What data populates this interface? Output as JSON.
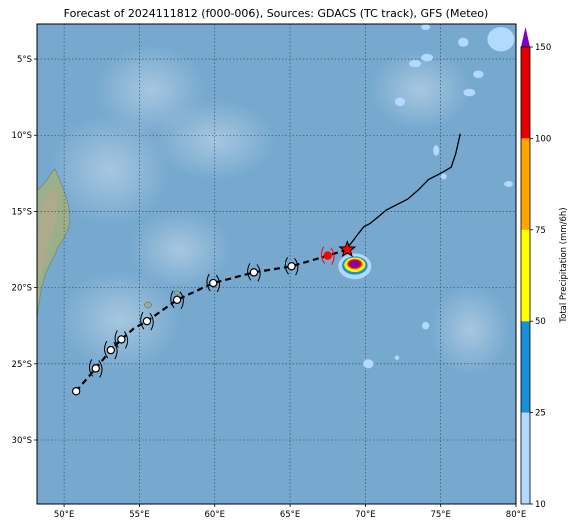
{
  "title": "Forecast of 2024111812 (f000-006), Sources: GDACS (TC track), GFS (Meteo)",
  "map": {
    "lon_range": [
      48.2,
      80
    ],
    "lat_range": [
      -34.2,
      -2.7
    ],
    "x_ticks": [
      {
        "value": 50,
        "label": "50°E"
      },
      {
        "value": 55,
        "label": "55°E"
      },
      {
        "value": 60,
        "label": "60°E"
      },
      {
        "value": 65,
        "label": "65°E"
      },
      {
        "value": 70,
        "label": "70°E"
      },
      {
        "value": 75,
        "label": "75°E"
      },
      {
        "value": 80,
        "label": "80°E"
      }
    ],
    "y_ticks": [
      {
        "value": -5,
        "label": "5°S"
      },
      {
        "value": -10,
        "label": "10°S"
      },
      {
        "value": -15,
        "label": "15°S"
      },
      {
        "value": -20,
        "label": "20°S"
      },
      {
        "value": -25,
        "label": "25°S"
      },
      {
        "value": -30,
        "label": "30°S"
      }
    ],
    "gridlines": true,
    "ocean_color": "#77a9cf",
    "land_color": "#9bb08a",
    "past_track": [
      [
        76.3,
        -9.9
      ],
      [
        76.0,
        -11.2
      ],
      [
        75.7,
        -12.1
      ],
      [
        75.0,
        -12.5
      ],
      [
        74.2,
        -12.9
      ],
      [
        73.5,
        -13.6
      ],
      [
        72.8,
        -14.2
      ],
      [
        72.0,
        -14.6
      ],
      [
        71.4,
        -14.9
      ],
      [
        70.8,
        -15.4
      ],
      [
        70.3,
        -15.8
      ],
      [
        69.9,
        -16.0
      ],
      [
        69.5,
        -16.5
      ],
      [
        69.2,
        -16.9
      ],
      [
        68.8,
        -17.4
      ]
    ],
    "current_position": {
      "lon": 68.8,
      "lat": -17.5,
      "color": "#ff0000"
    },
    "forecast_track": [
      [
        68.8,
        -17.5
      ],
      [
        67.5,
        -17.9
      ],
      [
        65.1,
        -18.6
      ],
      [
        62.6,
        -19.0
      ],
      [
        59.9,
        -19.7
      ],
      [
        57.5,
        -20.8
      ],
      [
        55.5,
        -22.2
      ],
      [
        54.6,
        -22.7
      ],
      [
        53.8,
        -23.4
      ],
      [
        53.1,
        -24.1
      ],
      [
        52.1,
        -25.3
      ],
      [
        50.8,
        -26.8
      ]
    ],
    "forecast_points": [
      {
        "lon": 67.5,
        "lat": -17.9,
        "color": "#ff0000"
      },
      {
        "lon": 65.1,
        "lat": -18.6,
        "color": "#ffffff"
      },
      {
        "lon": 62.6,
        "lat": -19.0,
        "color": "#ffffff"
      },
      {
        "lon": 59.9,
        "lat": -19.7,
        "color": "#ffffff"
      },
      {
        "lon": 57.5,
        "lat": -20.8,
        "color": "#ffffff"
      },
      {
        "lon": 55.5,
        "lat": -22.2,
        "color": "#ffffff"
      },
      {
        "lon": 53.8,
        "lat": -23.4,
        "color": "#ffffff"
      },
      {
        "lon": 53.1,
        "lat": -24.1,
        "color": "#ffffff"
      },
      {
        "lon": 52.1,
        "lat": -25.3,
        "color": "#ffffff"
      },
      {
        "lon": 50.8,
        "lat": -26.8,
        "color": "#ffffff"
      }
    ],
    "precip_blobs": [
      {
        "lon": 69.3,
        "lat": -18.6,
        "rx": 1.1,
        "ry": 0.85,
        "level": 10
      },
      {
        "lon": 69.3,
        "lat": -18.55,
        "rx": 0.85,
        "ry": 0.6,
        "level": 25
      },
      {
        "lon": 69.3,
        "lat": -18.5,
        "rx": 0.7,
        "ry": 0.48,
        "level": 50
      },
      {
        "lon": 69.3,
        "lat": -18.45,
        "rx": 0.55,
        "ry": 0.36,
        "level": 75
      },
      {
        "lon": 69.3,
        "lat": -18.45,
        "rx": 0.45,
        "ry": 0.3,
        "level": 100
      },
      {
        "lon": 69.3,
        "lat": -18.45,
        "rx": 0.35,
        "ry": 0.22,
        "level": 150
      },
      {
        "lon": 79.0,
        "lat": -3.7,
        "rx": 0.9,
        "ry": 0.8,
        "level": 10
      },
      {
        "lon": 77.5,
        "lat": -6.0,
        "rx": 0.35,
        "ry": 0.25,
        "level": 10
      },
      {
        "lon": 76.5,
        "lat": -3.9,
        "rx": 0.35,
        "ry": 0.3,
        "level": 10
      },
      {
        "lon": 74.1,
        "lat": -4.9,
        "rx": 0.4,
        "ry": 0.25,
        "level": 10
      },
      {
        "lon": 73.3,
        "lat": -5.3,
        "rx": 0.4,
        "ry": 0.25,
        "level": 10
      },
      {
        "lon": 76.9,
        "lat": -7.2,
        "rx": 0.4,
        "ry": 0.25,
        "level": 10
      },
      {
        "lon": 72.3,
        "lat": -7.8,
        "rx": 0.35,
        "ry": 0.3,
        "level": 10
      },
      {
        "lon": 74.0,
        "lat": -2.9,
        "rx": 0.3,
        "ry": 0.2,
        "level": 10
      },
      {
        "lon": 74.7,
        "lat": -11.0,
        "rx": 0.2,
        "ry": 0.35,
        "level": 10
      },
      {
        "lon": 75.2,
        "lat": -12.7,
        "rx": 0.2,
        "ry": 0.2,
        "level": 10
      },
      {
        "lon": 79.5,
        "lat": -13.2,
        "rx": 0.3,
        "ry": 0.2,
        "level": 10
      },
      {
        "lon": 74.0,
        "lat": -22.5,
        "rx": 0.25,
        "ry": 0.25,
        "level": 10
      },
      {
        "lon": 70.2,
        "lat": -25.0,
        "rx": 0.35,
        "ry": 0.3,
        "level": 10
      },
      {
        "lon": 72.1,
        "lat": -24.6,
        "rx": 0.15,
        "ry": 0.15,
        "level": 10
      }
    ]
  },
  "colorbar": {
    "label": "Total Precipitation (mm/6h)",
    "levels": [
      10,
      25,
      50,
      75,
      100,
      150
    ],
    "colors": [
      "#b3d9ff",
      "#1a8fd9",
      "#ffff00",
      "#ffa500",
      "#e60000"
    ],
    "extend_color": "#8000c0",
    "tick_labels": [
      "10",
      "25",
      "50",
      "75",
      "100",
      "150"
    ]
  }
}
